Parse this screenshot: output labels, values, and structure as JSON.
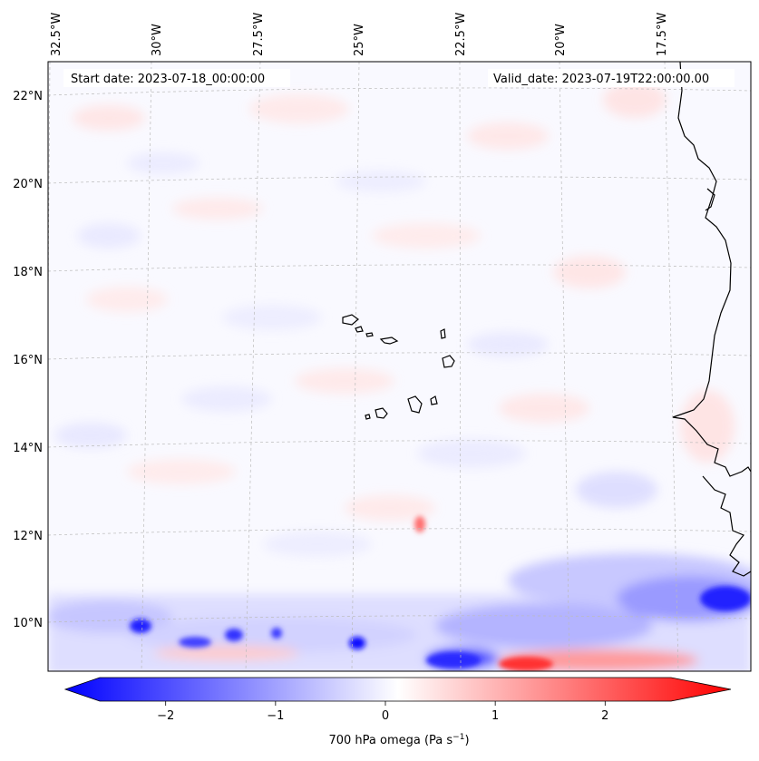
{
  "map": {
    "title_left": "Start date: 2023-07-18_00:00:00",
    "title_right": "Valid_date: 2023-07-19T22:00:00.00",
    "lon_labels": [
      "32.5°W",
      "30°W",
      "27.5°W",
      "25°W",
      "22.5°W",
      "20°W",
      "17.5°W"
    ],
    "lat_labels": [
      "22°N",
      "20°N",
      "18°N",
      "16°N",
      "14°N",
      "12°N",
      "10°N"
    ],
    "colorbar": {
      "label": "700 hPa omega (Pa s",
      "label_sup": "−1",
      "label_end": ")",
      "ticks": [
        {
          "value": -2,
          "label": "−2"
        },
        {
          "value": -1,
          "label": "−1"
        },
        {
          "value": 0,
          "label": "0"
        },
        {
          "value": 1,
          "label": "1"
        },
        {
          "value": 2,
          "label": "2"
        }
      ],
      "range": [
        -2.6,
        2.6
      ],
      "colors": {
        "low": "#0000ff",
        "mid": "#ffffff",
        "high": "#ff0000"
      }
    },
    "colors": {
      "coastline": "#000000",
      "grid": "#bbbbbb"
    }
  }
}
